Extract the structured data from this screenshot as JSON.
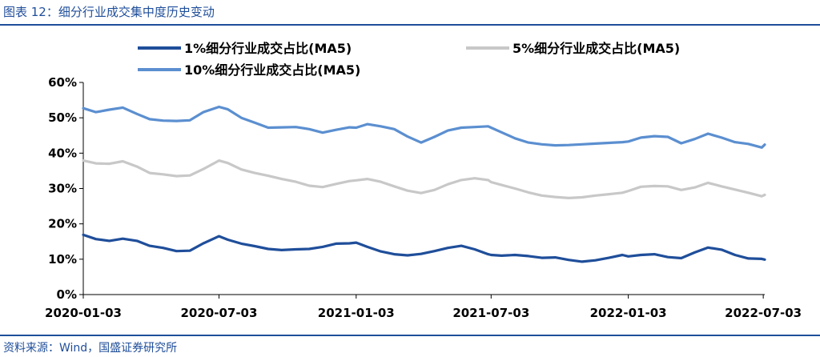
{
  "header": {
    "title": "图表 12：细分行业成交集中度历史变动"
  },
  "footer": {
    "source": "资料来源：Wind，国盛证券研究所"
  },
  "chart_data": {
    "type": "line",
    "title": "图表 12：细分行业成交集中度历史变动",
    "xlabel": "",
    "ylabel": "",
    "ylim": [
      0,
      60
    ],
    "yticks": [
      "0%",
      "10%",
      "20%",
      "30%",
      "40%",
      "50%",
      "60%"
    ],
    "xticks": [
      "2020-01-03",
      "2020-07-03",
      "2021-01-03",
      "2021-07-03",
      "2022-01-03",
      "2022-07-03"
    ],
    "x": [
      "2020-01-03",
      "2020-01-20",
      "2020-02-07",
      "2020-02-25",
      "2020-03-15",
      "2020-04-01",
      "2020-04-19",
      "2020-05-07",
      "2020-05-25",
      "2020-06-12",
      "2020-07-03",
      "2020-07-15",
      "2020-08-02",
      "2020-08-20",
      "2020-09-07",
      "2020-09-25",
      "2020-10-14",
      "2020-11-01",
      "2020-11-19",
      "2020-12-07",
      "2020-12-25",
      "2021-01-03",
      "2021-01-18",
      "2021-02-05",
      "2021-02-23",
      "2021-03-13",
      "2021-03-31",
      "2021-04-18",
      "2021-05-06",
      "2021-05-24",
      "2021-06-11",
      "2021-06-29",
      "2021-07-03",
      "2021-07-17",
      "2021-08-04",
      "2021-08-22",
      "2021-09-09",
      "2021-09-27",
      "2021-10-15",
      "2021-11-02",
      "2021-11-20",
      "2021-12-08",
      "2021-12-26",
      "2022-01-03",
      "2022-01-20",
      "2022-02-07",
      "2022-02-25",
      "2022-03-15",
      "2022-04-02",
      "2022-04-20",
      "2022-05-08",
      "2022-05-26",
      "2022-06-13",
      "2022-07-01",
      "2022-07-05"
    ],
    "series": [
      {
        "name": "1%细分行业成交占比(MA5)",
        "color": "#1f4e9a",
        "values": [
          16.9,
          15.7,
          15.2,
          15.8,
          15.2,
          13.8,
          13.2,
          12.3,
          12.4,
          14.5,
          16.5,
          15.5,
          14.4,
          13.7,
          12.9,
          12.6,
          12.8,
          12.9,
          13.5,
          14.4,
          14.5,
          14.7,
          13.5,
          12.2,
          11.4,
          11.1,
          11.5,
          12.3,
          13.2,
          13.8,
          12.8,
          11.4,
          11.2,
          11.0,
          11.2,
          10.9,
          10.4,
          10.5,
          9.8,
          9.3,
          9.7,
          10.4,
          11.2,
          10.8,
          11.2,
          11.4,
          10.6,
          10.3,
          11.9,
          13.3,
          12.7,
          11.2,
          10.2,
          10.1,
          9.9
        ]
      },
      {
        "name": "5%细分行业成交占比(MA5)",
        "color": "#c8c8c8",
        "values": [
          37.9,
          37.1,
          37.0,
          37.7,
          36.2,
          34.4,
          34.0,
          33.5,
          33.7,
          35.5,
          37.9,
          37.2,
          35.4,
          34.4,
          33.6,
          32.7,
          31.9,
          30.8,
          30.4,
          31.3,
          32.1,
          32.3,
          32.7,
          31.9,
          30.6,
          29.4,
          28.7,
          29.6,
          31.2,
          32.4,
          32.9,
          32.4,
          31.8,
          31.0,
          30.0,
          28.9,
          28.0,
          27.6,
          27.3,
          27.5,
          28.0,
          28.4,
          28.8,
          29.3,
          30.5,
          30.7,
          30.6,
          29.6,
          30.3,
          31.6,
          30.6,
          29.7,
          28.8,
          27.8,
          28.2
        ]
      },
      {
        "name": "10%细分行业成交占比(MA5)",
        "color": "#5b8fd0",
        "values": [
          52.7,
          51.6,
          52.3,
          52.9,
          51.1,
          49.6,
          49.2,
          49.1,
          49.3,
          51.6,
          53.1,
          52.4,
          50.0,
          48.6,
          47.2,
          47.3,
          47.4,
          46.8,
          45.8,
          46.6,
          47.3,
          47.2,
          48.2,
          47.6,
          46.8,
          44.7,
          43.0,
          44.6,
          46.4,
          47.2,
          47.4,
          47.6,
          47.2,
          45.9,
          44.2,
          43.0,
          42.5,
          42.2,
          42.3,
          42.5,
          42.7,
          42.9,
          43.1,
          43.3,
          44.4,
          44.8,
          44.6,
          42.8,
          44.0,
          45.5,
          44.4,
          43.1,
          42.6,
          41.6,
          42.4
        ]
      }
    ],
    "legend_position": "top",
    "grid": false
  }
}
